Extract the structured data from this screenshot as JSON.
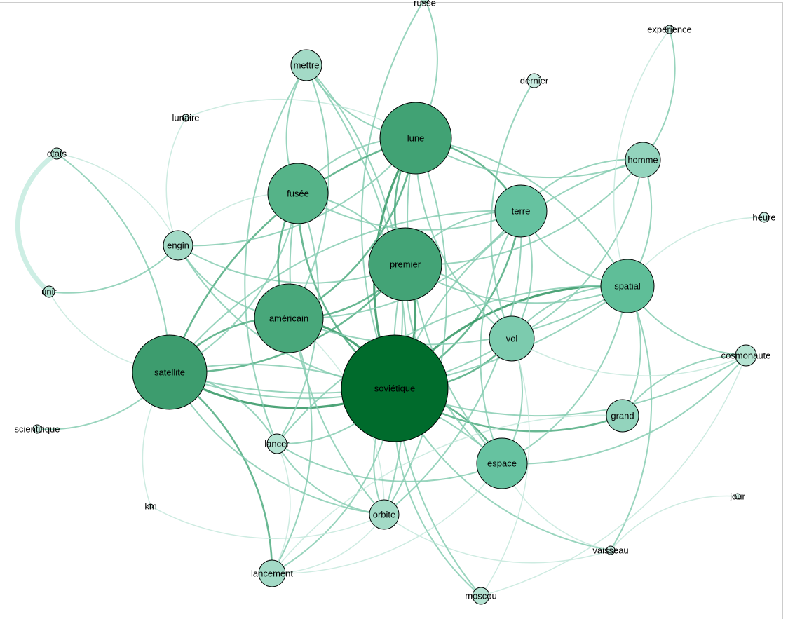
{
  "graph": {
    "nodes": [
      {
        "label": "russe",
        "color": "#b5e3d2"
      },
      {
        "label": "mettre",
        "color": "#a3dac6"
      },
      {
        "label": "dernier",
        "color": "#c8ebe0"
      },
      {
        "label": "expérience",
        "color": "#c8ebe0"
      },
      {
        "label": "lunaire",
        "color": "#c8ebe0"
      },
      {
        "label": "lune",
        "color": "#41a274"
      },
      {
        "label": "etats",
        "color": "#b5e3d2"
      },
      {
        "label": "homme",
        "color": "#93d4bd"
      },
      {
        "label": "fusée",
        "color": "#55b388"
      },
      {
        "label": "terre",
        "color": "#66c2a0"
      },
      {
        "label": "heure",
        "color": "#c8ebe0"
      },
      {
        "label": "engin",
        "color": "#a3dac6"
      },
      {
        "label": "premier",
        "color": "#43a376"
      },
      {
        "label": "spatial",
        "color": "#5fbe98"
      },
      {
        "label": "unir",
        "color": "#b5e3d2"
      },
      {
        "label": "américain",
        "color": "#48a77a"
      },
      {
        "label": "vol",
        "color": "#7ccbae"
      },
      {
        "label": "cosmonaute",
        "color": "#b5e3d2"
      },
      {
        "label": "satellite",
        "color": "#3d9c6e"
      },
      {
        "label": "soviétique",
        "color": "#006b2c"
      },
      {
        "label": "scientifique",
        "color": "#c8ebe0"
      },
      {
        "label": "grand",
        "color": "#93d4bd"
      },
      {
        "label": "lancer",
        "color": "#b5e3d2"
      },
      {
        "label": "espace",
        "color": "#66c2a0"
      },
      {
        "label": "jour",
        "color": "#d6f0e7"
      },
      {
        "label": "km",
        "color": "#d6f0e7"
      },
      {
        "label": "orbite",
        "color": "#a3dac6"
      },
      {
        "label": "vaisseau",
        "color": "#c8ebe0"
      },
      {
        "label": "lancement",
        "color": "#a3dac6"
      },
      {
        "label": "moscou",
        "color": "#b5e3d2"
      }
    ],
    "edges": [
      [
        "etats",
        "unir",
        5
      ],
      [
        "soviétique",
        "lune",
        4
      ],
      [
        "soviétique",
        "premier",
        4
      ],
      [
        "soviétique",
        "satellite",
        4
      ],
      [
        "soviétique",
        "américain",
        4
      ],
      [
        "soviétique",
        "fusée",
        3
      ],
      [
        "soviétique",
        "terre",
        3
      ],
      [
        "soviétique",
        "spatial",
        4
      ],
      [
        "soviétique",
        "vol",
        3
      ],
      [
        "soviétique",
        "espace",
        3
      ],
      [
        "soviétique",
        "grand",
        3
      ],
      [
        "soviétique",
        "lancer",
        2
      ],
      [
        "soviétique",
        "orbite",
        2
      ],
      [
        "soviétique",
        "lancement",
        2
      ],
      [
        "soviétique",
        "moscou",
        2
      ],
      [
        "soviétique",
        "homme",
        2
      ],
      [
        "soviétique",
        "cosmonaute",
        2
      ],
      [
        "soviétique",
        "engin",
        2
      ],
      [
        "soviétique",
        "mettre",
        2
      ],
      [
        "soviétique",
        "russe",
        2
      ],
      [
        "soviétique",
        "vaisseau",
        2
      ],
      [
        "satellite",
        "lune",
        3
      ],
      [
        "satellite",
        "premier",
        3
      ],
      [
        "satellite",
        "américain",
        3
      ],
      [
        "satellite",
        "fusée",
        2
      ],
      [
        "satellite",
        "terre",
        2
      ],
      [
        "satellite",
        "spatial",
        2
      ],
      [
        "satellite",
        "lancement",
        3
      ],
      [
        "satellite",
        "orbite",
        2
      ],
      [
        "satellite",
        "scientifique",
        2
      ],
      [
        "satellite",
        "km",
        1
      ],
      [
        "satellite",
        "lancer",
        2
      ],
      [
        "satellite",
        "vol",
        2
      ],
      [
        "satellite",
        "espace",
        2
      ],
      [
        "satellite",
        "etats",
        2
      ],
      [
        "satellite",
        "unir",
        1
      ],
      [
        "lune",
        "premier",
        3
      ],
      [
        "lune",
        "américain",
        3
      ],
      [
        "lune",
        "fusée",
        2
      ],
      [
        "lune",
        "terre",
        3
      ],
      [
        "lune",
        "homme",
        2
      ],
      [
        "lune",
        "mettre",
        2
      ],
      [
        "lune",
        "lunaire",
        1
      ],
      [
        "lune",
        "engin",
        2
      ],
      [
        "lune",
        "russe",
        2
      ],
      [
        "lune",
        "spatial",
        2
      ],
      [
        "lune",
        "espace",
        2
      ],
      [
        "lune",
        "orbite",
        2
      ],
      [
        "lune",
        "vol",
        2
      ],
      [
        "premier",
        "américain",
        3
      ],
      [
        "premier",
        "fusée",
        2
      ],
      [
        "premier",
        "terre",
        2
      ],
      [
        "premier",
        "spatial",
        2
      ],
      [
        "premier",
        "vol",
        2
      ],
      [
        "premier",
        "espace",
        2
      ],
      [
        "premier",
        "engin",
        2
      ],
      [
        "premier",
        "homme",
        2
      ],
      [
        "américain",
        "fusée",
        3
      ],
      [
        "américain",
        "spatial",
        2
      ],
      [
        "américain",
        "engin",
        2
      ],
      [
        "américain",
        "mettre",
        2
      ],
      [
        "américain",
        "lancement",
        2
      ],
      [
        "américain",
        "terre",
        2
      ],
      [
        "américain",
        "orbite",
        1
      ],
      [
        "fusée",
        "terre",
        2
      ],
      [
        "fusée",
        "mettre",
        2
      ],
      [
        "fusée",
        "engin",
        1
      ],
      [
        "fusée",
        "lancer",
        2
      ],
      [
        "fusée",
        "orbite",
        2
      ],
      [
        "terre",
        "homme",
        2
      ],
      [
        "terre",
        "spatial",
        2
      ],
      [
        "terre",
        "vol",
        2
      ],
      [
        "terre",
        "espace",
        2
      ],
      [
        "terre",
        "orbite",
        2
      ],
      [
        "spatial",
        "vol",
        2
      ],
      [
        "spatial",
        "espace",
        2
      ],
      [
        "spatial",
        "cosmonaute",
        2
      ],
      [
        "spatial",
        "heure",
        1
      ],
      [
        "spatial",
        "homme",
        2
      ],
      [
        "spatial",
        "grand",
        2
      ],
      [
        "spatial",
        "lancer",
        2
      ],
      [
        "spatial",
        "vaisseau",
        2
      ],
      [
        "vol",
        "homme",
        2
      ],
      [
        "vol",
        "espace",
        2
      ],
      [
        "vol",
        "cosmonaute",
        1
      ],
      [
        "vol",
        "moscou",
        1
      ],
      [
        "espace",
        "cosmonaute",
        2
      ],
      [
        "espace",
        "lancer",
        2
      ],
      [
        "espace",
        "vaisseau",
        1
      ],
      [
        "espace",
        "lancement",
        1
      ],
      [
        "grand",
        "lancement",
        1
      ],
      [
        "grand",
        "cosmonaute",
        2
      ],
      [
        "homme",
        "expérience",
        2
      ],
      [
        "spatial",
        "expérience",
        1
      ],
      [
        "dernier",
        "vol",
        2
      ],
      [
        "engin",
        "unir",
        2
      ],
      [
        "engin",
        "etats",
        1
      ],
      [
        "engin",
        "lunaire",
        1
      ],
      [
        "lancer",
        "orbite",
        2
      ],
      [
        "lancer",
        "lancement",
        1
      ],
      [
        "lancement",
        "orbite",
        1
      ],
      [
        "orbite",
        "km",
        1
      ],
      [
        "orbite",
        "vaisseau",
        1
      ],
      [
        "cosmonaute",
        "moscou",
        1
      ],
      [
        "jour",
        "vaisseau",
        1
      ],
      [
        "mettre",
        "orbite",
        2
      ],
      [
        "mettre",
        "lancer",
        2
      ],
      [
        "moscou",
        "premier",
        2
      ]
    ]
  }
}
